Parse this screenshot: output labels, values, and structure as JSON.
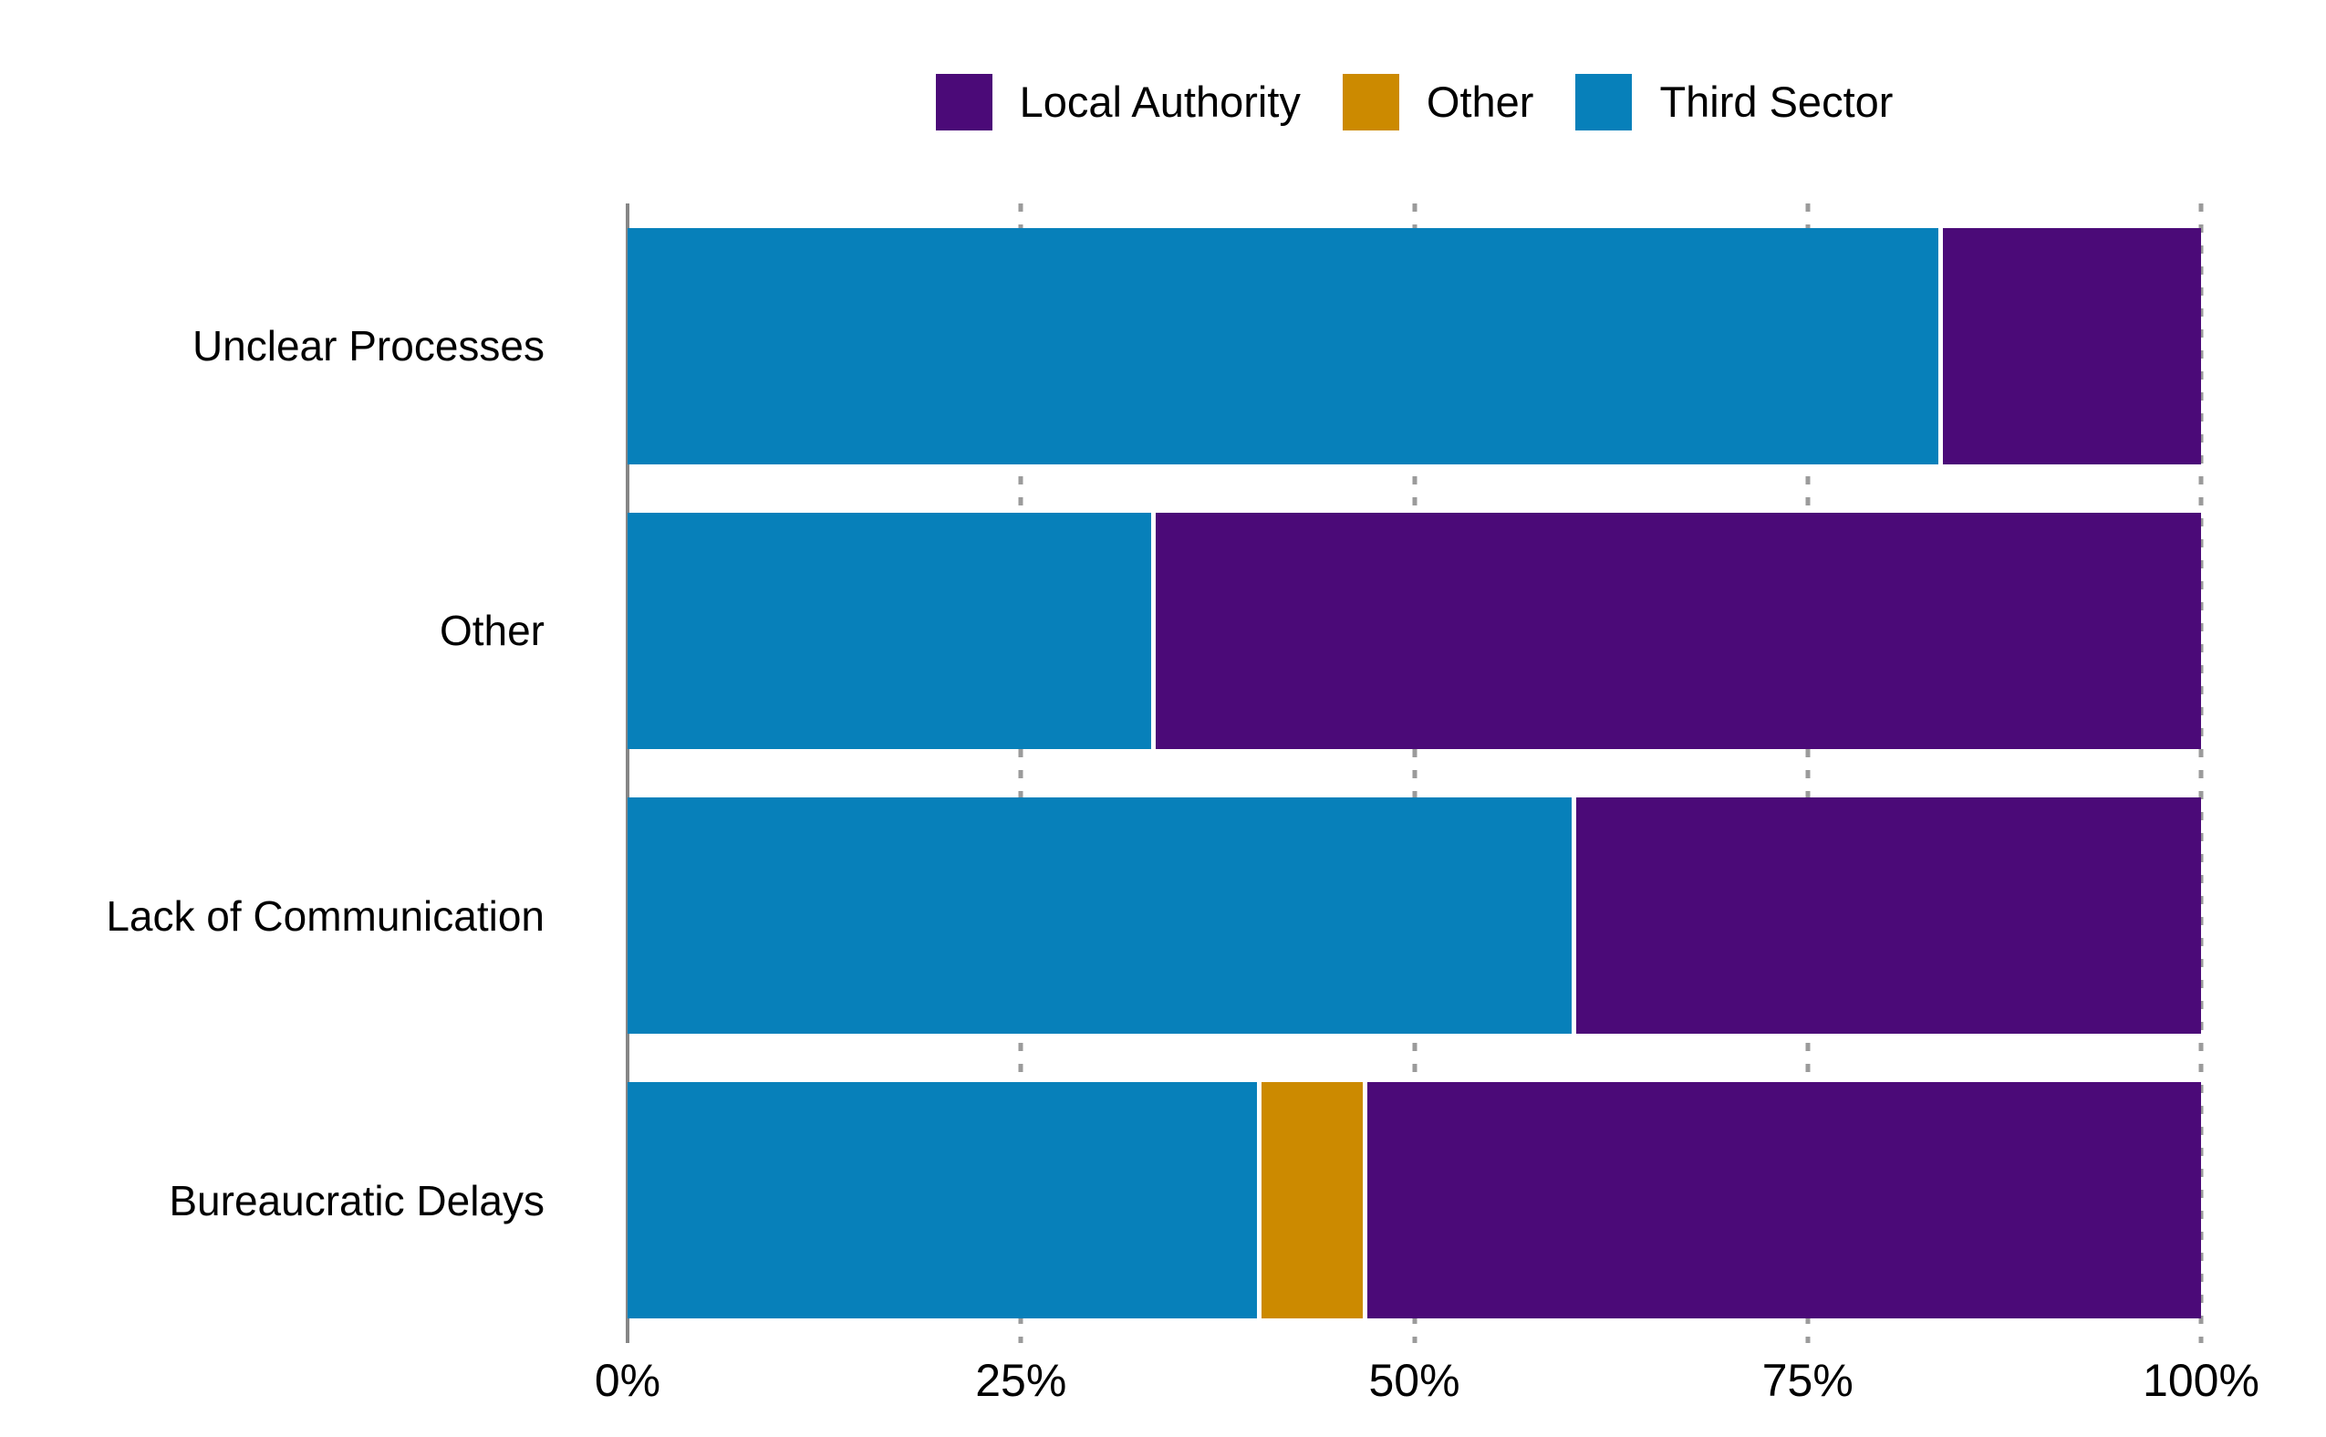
{
  "chart_data": {
    "type": "bar",
    "orientation": "horizontal",
    "stacked": true,
    "unit": "percent",
    "title": "",
    "xlabel": "",
    "ylabel": "",
    "xlim": [
      0,
      100
    ],
    "grid": "dotted-vertical",
    "legend_position": "top-center",
    "categories": [
      "Unclear Processes",
      "Other",
      "Lack of Communication",
      "Bureaucratic Delays"
    ],
    "series": [
      {
        "name": "Third Sector",
        "color": "#0780BA",
        "values": [
          83.3,
          33.3,
          60.0,
          40.0
        ]
      },
      {
        "name": "Other",
        "color": "#CC8A00",
        "values": [
          0,
          0,
          0,
          6.7
        ]
      },
      {
        "name": "Local Authority",
        "color": "#4B0A78",
        "values": [
          16.7,
          66.7,
          40.0,
          53.3
        ]
      }
    ],
    "legend": [
      {
        "label": "Local Authority",
        "color": "#4B0A78"
      },
      {
        "label": "Other",
        "color": "#CC8A00"
      },
      {
        "label": "Third Sector",
        "color": "#0780BA"
      }
    ],
    "x_ticks": [
      {
        "label": "0%",
        "value": 0
      },
      {
        "label": "25%",
        "value": 25
      },
      {
        "label": "50%",
        "value": 50
      },
      {
        "label": "75%",
        "value": 75
      },
      {
        "label": "100%",
        "value": 100
      }
    ],
    "colors": {
      "axis_line": "#868686",
      "grid_line": "#9b9b9b",
      "segment_border": "#ffffff",
      "text": "#000000",
      "background": "#ffffff"
    }
  }
}
